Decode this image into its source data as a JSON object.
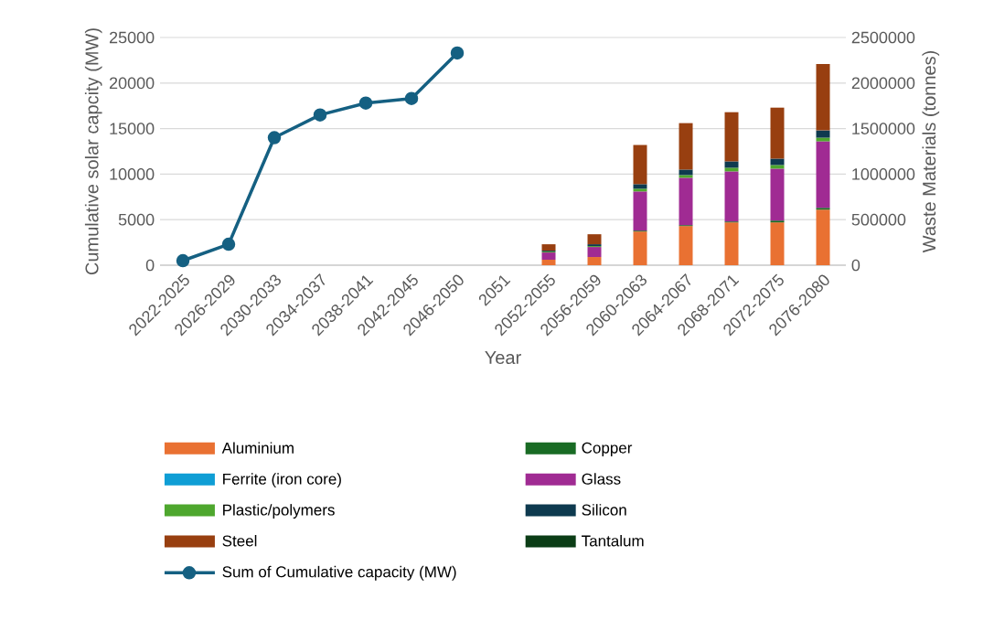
{
  "chart_data": {
    "type": "bar",
    "stacked": true,
    "grid": "y",
    "legend": "bottom",
    "xlabel": "Year",
    "ylabel": "Cumulative solar capcity (MW)",
    "y2label": "Waste Materials (tonnes)",
    "categories": [
      "2022-2025",
      "2026-2029",
      "2030-2033",
      "2034-2037",
      "2038-2041",
      "2042-2045",
      "2046-2050",
      "2051",
      "2052-2055",
      "2056-2059",
      "2060-2063",
      "2064-2067",
      "2068-2071",
      "2072-2075",
      "2076-2080"
    ],
    "ylim": [
      0,
      25000
    ],
    "yticks": [
      0,
      5000,
      10000,
      15000,
      20000,
      25000
    ],
    "y2lim": [
      0,
      2500000
    ],
    "y2ticks": [
      0,
      500000,
      1000000,
      1500000,
      2000000,
      2500000
    ],
    "series": [
      {
        "name": "Aluminium",
        "type": "bar",
        "axis": "y2",
        "color": "#e97132",
        "values": [
          null,
          null,
          null,
          null,
          null,
          null,
          null,
          null,
          60000,
          90000,
          370000,
          430000,
          470000,
          470000,
          610000
        ]
      },
      {
        "name": "Copper",
        "type": "bar",
        "axis": "y2",
        "color": "#196b24",
        "values": [
          null,
          null,
          null,
          null,
          null,
          null,
          null,
          null,
          0,
          0,
          10000,
          10000,
          10000,
          20000,
          20000
        ]
      },
      {
        "name": "Ferrite (iron core)",
        "type": "bar",
        "axis": "y2",
        "color": "#0f9ed5",
        "values": [
          null,
          null,
          null,
          null,
          null,
          null,
          null,
          null,
          0,
          0,
          0,
          0,
          0,
          0,
          0
        ]
      },
      {
        "name": "Glass",
        "type": "bar",
        "axis": "y2",
        "color": "#a02b93",
        "values": [
          null,
          null,
          null,
          null,
          null,
          null,
          null,
          null,
          80000,
          110000,
          430000,
          520000,
          550000,
          570000,
          730000
        ]
      },
      {
        "name": "Plastic/polymers",
        "type": "bar",
        "axis": "y2",
        "color": "#4ea72e",
        "values": [
          null,
          null,
          null,
          null,
          null,
          null,
          null,
          null,
          10000,
          10000,
          30000,
          30000,
          40000,
          40000,
          40000
        ]
      },
      {
        "name": "Silicon",
        "type": "bar",
        "axis": "y2",
        "color": "#0e3a4f",
        "values": [
          null,
          null,
          null,
          null,
          null,
          null,
          null,
          null,
          10000,
          20000,
          50000,
          60000,
          70000,
          70000,
          80000
        ]
      },
      {
        "name": "Steel",
        "type": "bar",
        "axis": "y2",
        "color": "#983f10",
        "values": [
          null,
          null,
          null,
          null,
          null,
          null,
          null,
          null,
          70000,
          110000,
          430000,
          510000,
          540000,
          560000,
          730000
        ]
      },
      {
        "name": "Tantalum",
        "type": "bar",
        "axis": "y2",
        "color": "#0b3d16",
        "values": [
          null,
          null,
          null,
          null,
          null,
          null,
          null,
          null,
          0,
          0,
          0,
          0,
          0,
          0,
          0
        ]
      },
      {
        "name": "Sum of Cumulative capacity (MW)",
        "type": "line",
        "axis": "y",
        "marker": "circle",
        "line_style": "solid",
        "color": "#156082",
        "values": [
          500,
          2300,
          14000,
          16500,
          17800,
          18300,
          23300,
          null,
          null,
          null,
          null,
          null,
          null,
          null,
          null
        ]
      }
    ]
  }
}
